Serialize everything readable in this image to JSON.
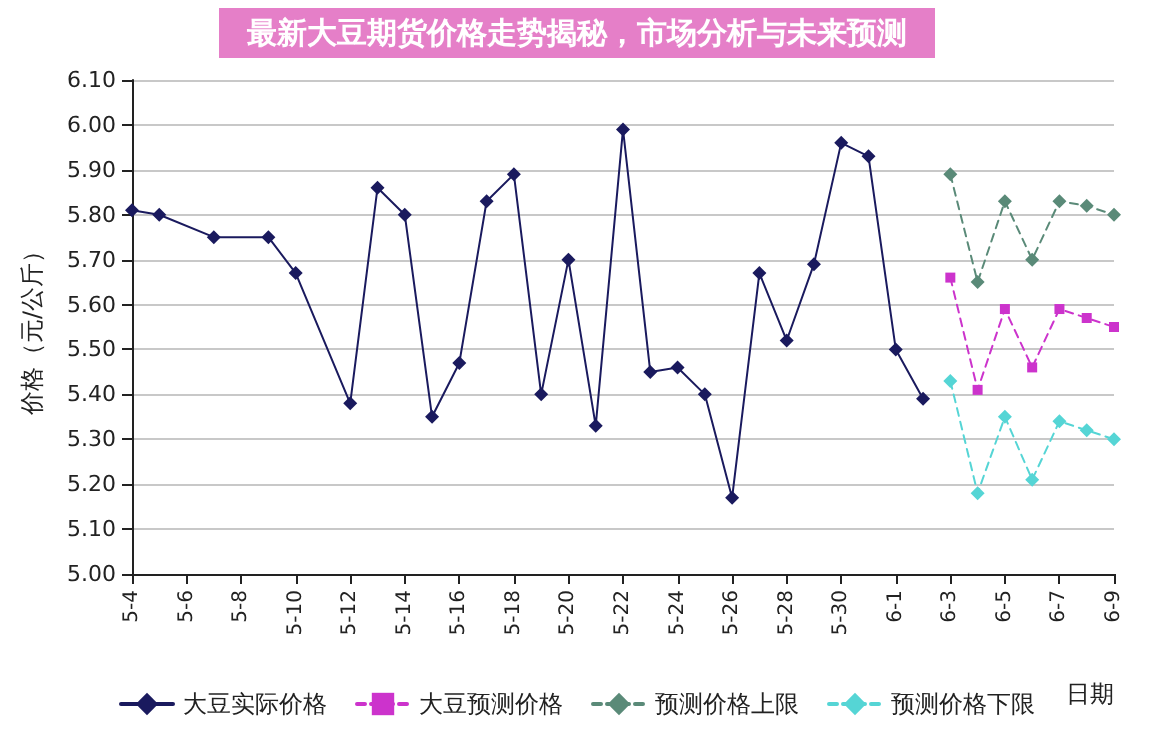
{
  "chart_data": {
    "type": "line",
    "title": "最新大豆期货价格走势揭秘，市场分析与未来预测",
    "xlabel": "日期",
    "ylabel": "价格（元/公斤）",
    "categories": [
      "5-4",
      null,
      "5-6",
      null,
      "5-8",
      null,
      "5-10",
      null,
      "5-12",
      null,
      "5-14",
      null,
      "5-16",
      null,
      "5-18",
      null,
      "5-20",
      null,
      "5-22",
      null,
      "5-24",
      null,
      "5-26",
      null,
      "5-28",
      null,
      "5-30",
      null,
      "6-1",
      null,
      "6-3",
      null,
      "6-5",
      null,
      "6-7",
      null,
      "6-9"
    ],
    "series": [
      {
        "name": "大豆实际价格",
        "color": "#1a1a5e",
        "marker": "diamond",
        "line_style": "solid",
        "values": [
          5.81,
          5.8,
          null,
          5.75,
          null,
          5.75,
          5.67,
          null,
          5.38,
          5.86,
          5.8,
          5.35,
          5.47,
          5.83,
          5.89,
          5.4,
          5.7,
          5.33,
          5.99,
          5.45,
          5.46,
          5.4,
          5.17,
          5.67,
          5.52,
          5.69,
          5.96,
          5.93,
          5.5,
          5.39,
          null,
          null,
          null,
          null,
          null,
          null,
          null
        ]
      },
      {
        "name": "大豆预测价格",
        "color": "#cc33cc",
        "marker": "square",
        "line_style": "dashed",
        "values": [
          null,
          null,
          null,
          null,
          null,
          null,
          null,
          null,
          null,
          null,
          null,
          null,
          null,
          null,
          null,
          null,
          null,
          null,
          null,
          null,
          null,
          null,
          null,
          null,
          null,
          null,
          null,
          null,
          null,
          null,
          5.66,
          5.41,
          5.59,
          5.46,
          5.59,
          5.57,
          5.55
        ]
      },
      {
        "name": "预测价格上限",
        "color": "#5a8a78",
        "marker": "diamond",
        "line_style": "dashed",
        "values": [
          null,
          null,
          null,
          null,
          null,
          null,
          null,
          null,
          null,
          null,
          null,
          null,
          null,
          null,
          null,
          null,
          null,
          null,
          null,
          null,
          null,
          null,
          null,
          null,
          null,
          null,
          null,
          null,
          null,
          null,
          5.89,
          5.65,
          5.83,
          5.7,
          5.83,
          5.82,
          5.8
        ]
      },
      {
        "name": "预测价格下限",
        "color": "#55d5d5",
        "marker": "diamond",
        "line_style": "dashed",
        "values": [
          null,
          null,
          null,
          null,
          null,
          null,
          null,
          null,
          null,
          null,
          null,
          null,
          null,
          null,
          null,
          null,
          null,
          null,
          null,
          null,
          null,
          null,
          null,
          null,
          null,
          null,
          null,
          null,
          null,
          null,
          5.43,
          5.18,
          5.35,
          5.21,
          5.34,
          5.32,
          5.3
        ]
      }
    ],
    "ylim": [
      5.0,
      6.1
    ],
    "yticks": [
      {
        "value": 5.0,
        "label": "5.00"
      },
      {
        "value": 5.1,
        "label": "5.10"
      },
      {
        "value": 5.2,
        "label": "5.20"
      },
      {
        "value": 5.3,
        "label": "5.30"
      },
      {
        "value": 5.4,
        "label": "5.40"
      },
      {
        "value": 5.5,
        "label": "5.50"
      },
      {
        "value": 5.6,
        "label": "5.60"
      },
      {
        "value": 5.7,
        "label": "5.70"
      },
      {
        "value": 5.8,
        "label": "5.80"
      },
      {
        "value": 5.9,
        "label": "5.90"
      },
      {
        "value": 6.0,
        "label": "6.00"
      },
      {
        "value": 6.1,
        "label": "6.10"
      }
    ],
    "grid": "y",
    "legend": "bottom"
  }
}
